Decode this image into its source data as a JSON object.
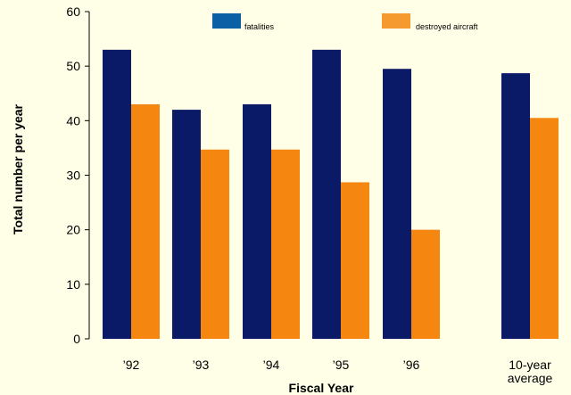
{
  "chart_data": {
    "type": "bar",
    "title": "",
    "xlabel": "Fiscal Year",
    "ylabel": "Total number per year",
    "ylim": [
      0,
      60
    ],
    "yticks": [
      0,
      10,
      20,
      30,
      40,
      50,
      60
    ],
    "grid": false,
    "legend_position": "top",
    "categories": [
      {
        "line1": "’92",
        "line2": ""
      },
      {
        "line1": "’93",
        "line2": ""
      },
      {
        "line1": "’94",
        "line2": ""
      },
      {
        "line1": "’95",
        "line2": ""
      },
      {
        "line1": "’96",
        "line2": ""
      },
      {
        "line1": "10-year",
        "line2": "average"
      }
    ],
    "series": [
      {
        "name": "fatalities",
        "color": "#0b1a66",
        "values": [
          53,
          42,
          43,
          53,
          49.5,
          48.7
        ]
      },
      {
        "name": "destroyed aircraft",
        "color": "#f5860f",
        "values": [
          43,
          34.7,
          34.7,
          28.7,
          20,
          40.5
        ]
      }
    ]
  }
}
